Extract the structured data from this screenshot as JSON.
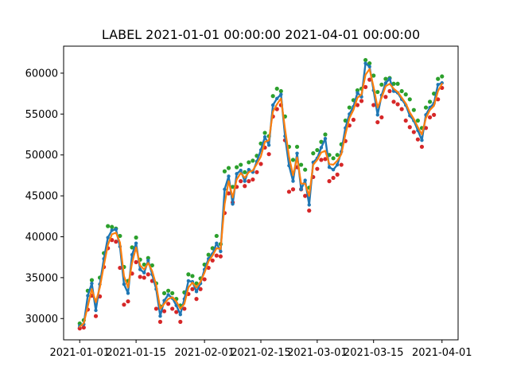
{
  "chart_data": {
    "type": "line",
    "title": "LABEL 2021-01-01 00:00:00 2021-04-01 00:00:00",
    "xlabel": "",
    "ylabel": "",
    "x_range": [
      "2020-12-28",
      "2021-04-05"
    ],
    "ylim": [
      27400,
      63300
    ],
    "x_ticks": [
      "2021-01-01",
      "2021-01-15",
      "2021-02-01",
      "2021-02-15",
      "2021-03-01",
      "2021-03-15",
      "2021-04-01"
    ],
    "x_tick_labels": [
      "2021-01-01",
      "2021-01-15",
      "2021-02-01",
      "2021-02-15",
      "2021-03-01",
      "2021-03-15",
      "2021-04-01"
    ],
    "y_ticks": [
      30000,
      35000,
      40000,
      45000,
      50000,
      55000,
      60000
    ],
    "y_tick_labels": [
      "30000",
      "35000",
      "40000",
      "45000",
      "50000",
      "55000",
      "60000"
    ],
    "grid": false,
    "legend": "none",
    "colors": {
      "close": "#1f77b4",
      "smooth": "#ff7f0e",
      "high": "#2ca02c",
      "low": "#d62728"
    },
    "series": [
      {
        "role": "smoothed",
        "x": [
          "2021-01-01",
          "2021-01-02",
          "2021-01-03",
          "2021-01-04",
          "2021-01-05",
          "2021-01-06",
          "2021-01-07",
          "2021-01-08",
          "2021-01-09",
          "2021-01-10",
          "2021-01-11",
          "2021-01-12",
          "2021-01-13",
          "2021-01-14",
          "2021-01-15",
          "2021-01-16",
          "2021-01-17",
          "2021-01-18",
          "2021-01-19",
          "2021-01-20",
          "2021-01-21",
          "2021-01-22",
          "2021-01-23",
          "2021-01-24",
          "2021-01-25",
          "2021-01-26",
          "2021-01-27",
          "2021-01-28",
          "2021-01-29",
          "2021-01-30",
          "2021-01-31",
          "2021-02-01",
          "2021-02-02",
          "2021-02-03",
          "2021-02-04",
          "2021-02-05",
          "2021-02-06",
          "2021-02-07",
          "2021-02-08",
          "2021-02-09",
          "2021-02-10",
          "2021-02-11",
          "2021-02-12",
          "2021-02-13",
          "2021-02-14",
          "2021-02-15",
          "2021-02-16",
          "2021-02-17",
          "2021-02-18",
          "2021-02-19",
          "2021-02-20",
          "2021-02-21",
          "2021-02-22",
          "2021-02-23",
          "2021-02-24",
          "2021-02-25",
          "2021-02-26",
          "2021-02-27",
          "2021-02-28",
          "2021-03-01",
          "2021-03-02",
          "2021-03-03",
          "2021-03-04",
          "2021-03-05",
          "2021-03-06",
          "2021-03-07",
          "2021-03-08",
          "2021-03-09",
          "2021-03-10",
          "2021-03-11",
          "2021-03-12",
          "2021-03-13",
          "2021-03-14",
          "2021-03-15",
          "2021-03-16",
          "2021-03-17",
          "2021-03-18",
          "2021-03-19",
          "2021-03-20",
          "2021-03-21",
          "2021-03-22",
          "2021-03-23",
          "2021-03-24",
          "2021-03-25",
          "2021-03-26",
          "2021-03-27",
          "2021-03-28",
          "2021-03-29",
          "2021-03-30",
          "2021-03-31",
          "2021-04-01"
        ],
        "values": [
          29000,
          29400,
          31500,
          33600,
          32000,
          33800,
          36500,
          39000,
          40300,
          40500,
          39300,
          35200,
          33800,
          36800,
          38700,
          36500,
          36000,
          36800,
          35800,
          34100,
          31200,
          31800,
          32400,
          32600,
          32100,
          31200,
          31800,
          33800,
          34400,
          33800,
          34500,
          35600,
          37000,
          37700,
          38600,
          38500,
          44000,
          46800,
          44800,
          47000,
          47800,
          47200,
          47900,
          48100,
          48900,
          49800,
          51600,
          51800,
          55300,
          56200,
          56900,
          53200,
          49800,
          47500,
          49700,
          46500,
          46500,
          45000,
          48800,
          49400,
          50300,
          50500,
          48900,
          48800,
          49300,
          50100,
          52500,
          54500,
          55500,
          57000,
          57400,
          59800,
          60500,
          58300,
          55800,
          57000,
          58400,
          58700,
          58100,
          57700,
          57000,
          56300,
          55200,
          54400,
          53400,
          52500,
          54500,
          55500,
          56000,
          57800,
          58700
        ]
      },
      {
        "role": "close",
        "x": [
          "2021-01-01",
          "2021-01-02",
          "2021-01-03",
          "2021-01-04",
          "2021-01-05",
          "2021-01-06",
          "2021-01-07",
          "2021-01-08",
          "2021-01-09",
          "2021-01-10",
          "2021-01-11",
          "2021-01-12",
          "2021-01-13",
          "2021-01-14",
          "2021-01-15",
          "2021-01-16",
          "2021-01-17",
          "2021-01-18",
          "2021-01-19",
          "2021-01-20",
          "2021-01-21",
          "2021-01-22",
          "2021-01-23",
          "2021-01-24",
          "2021-01-25",
          "2021-01-26",
          "2021-01-27",
          "2021-01-28",
          "2021-01-29",
          "2021-01-30",
          "2021-01-31",
          "2021-02-01",
          "2021-02-02",
          "2021-02-03",
          "2021-02-04",
          "2021-02-05",
          "2021-02-06",
          "2021-02-07",
          "2021-02-08",
          "2021-02-09",
          "2021-02-10",
          "2021-02-11",
          "2021-02-12",
          "2021-02-13",
          "2021-02-14",
          "2021-02-15",
          "2021-02-16",
          "2021-02-17",
          "2021-02-18",
          "2021-02-19",
          "2021-02-20",
          "2021-02-21",
          "2021-02-22",
          "2021-02-23",
          "2021-02-24",
          "2021-02-25",
          "2021-02-26",
          "2021-02-27",
          "2021-02-28",
          "2021-03-01",
          "2021-03-02",
          "2021-03-03",
          "2021-03-04",
          "2021-03-05",
          "2021-03-06",
          "2021-03-07",
          "2021-03-08",
          "2021-03-09",
          "2021-03-10",
          "2021-03-11",
          "2021-03-12",
          "2021-03-13",
          "2021-03-14",
          "2021-03-15",
          "2021-03-16",
          "2021-03-17",
          "2021-03-18",
          "2021-03-19",
          "2021-03-20",
          "2021-03-21",
          "2021-03-22",
          "2021-03-23",
          "2021-03-24",
          "2021-03-25",
          "2021-03-26",
          "2021-03-27",
          "2021-03-28",
          "2021-03-29",
          "2021-03-30",
          "2021-03-31",
          "2021-04-01"
        ],
        "values": [
          29100,
          29300,
          32800,
          34300,
          31000,
          34200,
          37300,
          39900,
          40800,
          40900,
          38800,
          34200,
          33100,
          37800,
          39200,
          36000,
          35600,
          37100,
          35400,
          33600,
          30300,
          32200,
          32900,
          32500,
          31600,
          30500,
          32400,
          34600,
          34500,
          33300,
          34300,
          36000,
          37300,
          37900,
          39200,
          38200,
          45800,
          47400,
          44000,
          47700,
          48100,
          46800,
          48200,
          47900,
          49200,
          50600,
          52200,
          51200,
          56100,
          56900,
          57400,
          52300,
          48700,
          46800,
          50200,
          45800,
          46900,
          43900,
          49100,
          49600,
          50900,
          52000,
          48500,
          48200,
          48800,
          50400,
          53300,
          55000,
          55900,
          57600,
          57100,
          61200,
          60800,
          57900,
          54900,
          57300,
          58800,
          59300,
          57800,
          57600,
          56800,
          56100,
          54800,
          54200,
          53000,
          51800,
          54900,
          55800,
          56300,
          58600,
          58800
        ]
      },
      {
        "role": "high",
        "x": [
          "2021-01-01",
          "2021-01-02",
          "2021-01-03",
          "2021-01-04",
          "2021-01-05",
          "2021-01-06",
          "2021-01-07",
          "2021-01-08",
          "2021-01-09",
          "2021-01-10",
          "2021-01-11",
          "2021-01-12",
          "2021-01-13",
          "2021-01-14",
          "2021-01-15",
          "2021-01-16",
          "2021-01-17",
          "2021-01-18",
          "2021-01-19",
          "2021-01-20",
          "2021-01-21",
          "2021-01-22",
          "2021-01-23",
          "2021-01-24",
          "2021-01-25",
          "2021-01-26",
          "2021-01-27",
          "2021-01-28",
          "2021-01-29",
          "2021-01-30",
          "2021-01-31",
          "2021-02-01",
          "2021-02-02",
          "2021-02-03",
          "2021-02-04",
          "2021-02-05",
          "2021-02-06",
          "2021-02-07",
          "2021-02-08",
          "2021-02-09",
          "2021-02-10",
          "2021-02-11",
          "2021-02-12",
          "2021-02-13",
          "2021-02-14",
          "2021-02-15",
          "2021-02-16",
          "2021-02-17",
          "2021-02-18",
          "2021-02-19",
          "2021-02-20",
          "2021-02-21",
          "2021-02-22",
          "2021-02-23",
          "2021-02-24",
          "2021-02-25",
          "2021-02-26",
          "2021-02-27",
          "2021-02-28",
          "2021-03-01",
          "2021-03-02",
          "2021-03-03",
          "2021-03-04",
          "2021-03-05",
          "2021-03-06",
          "2021-03-07",
          "2021-03-08",
          "2021-03-09",
          "2021-03-10",
          "2021-03-11",
          "2021-03-12",
          "2021-03-13",
          "2021-03-14",
          "2021-03-15",
          "2021-03-16",
          "2021-03-17",
          "2021-03-18",
          "2021-03-19",
          "2021-03-20",
          "2021-03-21",
          "2021-03-22",
          "2021-03-23",
          "2021-03-24",
          "2021-03-25",
          "2021-03-26",
          "2021-03-27",
          "2021-03-28",
          "2021-03-29",
          "2021-03-30",
          "2021-03-31",
          "2021-04-01"
        ],
        "values": [
          29400,
          29800,
          33400,
          34700,
          32200,
          35000,
          38000,
          41300,
          41200,
          41000,
          40100,
          36300,
          34600,
          38700,
          39900,
          37200,
          36600,
          37400,
          36500,
          34300,
          31500,
          33100,
          33400,
          33100,
          32400,
          31600,
          33200,
          35400,
          35200,
          34300,
          34900,
          36600,
          37800,
          38600,
          40100,
          39100,
          48000,
          48400,
          46100,
          48500,
          48800,
          47900,
          49100,
          49300,
          49900,
          51400,
          52700,
          52300,
          57200,
          58100,
          57800,
          54700,
          51000,
          49400,
          51000,
          48800,
          48200,
          46000,
          50200,
          50600,
          51600,
          52500,
          50000,
          49600,
          50000,
          51300,
          54200,
          55800,
          56700,
          57900,
          58100,
          61600,
          61200,
          59700,
          57700,
          58600,
          59300,
          59400,
          58700,
          58700,
          57800,
          57400,
          56800,
          55500,
          54200,
          53300,
          55800,
          56500,
          57500,
          59300,
          59600
        ]
      },
      {
        "role": "low",
        "x": [
          "2021-01-01",
          "2021-01-02",
          "2021-01-03",
          "2021-01-04",
          "2021-01-05",
          "2021-01-06",
          "2021-01-07",
          "2021-01-08",
          "2021-01-09",
          "2021-01-10",
          "2021-01-11",
          "2021-01-12",
          "2021-01-13",
          "2021-01-14",
          "2021-01-15",
          "2021-01-16",
          "2021-01-17",
          "2021-01-18",
          "2021-01-19",
          "2021-01-20",
          "2021-01-21",
          "2021-01-22",
          "2021-01-23",
          "2021-01-24",
          "2021-01-25",
          "2021-01-26",
          "2021-01-27",
          "2021-01-28",
          "2021-01-29",
          "2021-01-30",
          "2021-01-31",
          "2021-02-01",
          "2021-02-02",
          "2021-02-03",
          "2021-02-04",
          "2021-02-05",
          "2021-02-06",
          "2021-02-07",
          "2021-02-08",
          "2021-02-09",
          "2021-02-10",
          "2021-02-11",
          "2021-02-12",
          "2021-02-13",
          "2021-02-14",
          "2021-02-15",
          "2021-02-16",
          "2021-02-17",
          "2021-02-18",
          "2021-02-19",
          "2021-02-20",
          "2021-02-21",
          "2021-02-22",
          "2021-02-23",
          "2021-02-24",
          "2021-02-25",
          "2021-02-26",
          "2021-02-27",
          "2021-02-28",
          "2021-03-01",
          "2021-03-02",
          "2021-03-03",
          "2021-03-04",
          "2021-03-05",
          "2021-03-06",
          "2021-03-07",
          "2021-03-08",
          "2021-03-09",
          "2021-03-10",
          "2021-03-11",
          "2021-03-12",
          "2021-03-13",
          "2021-03-14",
          "2021-03-15",
          "2021-03-16",
          "2021-03-17",
          "2021-03-18",
          "2021-03-19",
          "2021-03-20",
          "2021-03-21",
          "2021-03-22",
          "2021-03-23",
          "2021-03-24",
          "2021-03-25",
          "2021-03-26",
          "2021-03-27",
          "2021-03-28",
          "2021-03-29",
          "2021-03-30",
          "2021-03-31",
          "2021-04-01"
        ],
        "values": [
          28800,
          28900,
          31100,
          32800,
          30300,
          32700,
          36300,
          38600,
          39600,
          39400,
          36200,
          31700,
          32100,
          35500,
          36900,
          35100,
          35000,
          35400,
          34600,
          31200,
          29600,
          30900,
          31800,
          31200,
          30800,
          29600,
          31200,
          33000,
          33600,
          32400,
          33600,
          34800,
          36200,
          37100,
          37700,
          37600,
          42900,
          45300,
          44200,
          46100,
          46800,
          46200,
          46800,
          47000,
          47900,
          48900,
          50900,
          50100,
          54700,
          55600,
          56100,
          51800,
          45500,
          45800,
          48500,
          45800,
          45000,
          43200,
          47300,
          48300,
          49400,
          49500,
          46800,
          47200,
          47600,
          48800,
          51700,
          53600,
          54300,
          56100,
          56600,
          58300,
          59200,
          56100,
          54000,
          54600,
          57100,
          57800,
          56500,
          56200,
          55600,
          54200,
          53400,
          52800,
          51900,
          51000,
          53300,
          54600,
          54900,
          56800,
          58200
        ]
      }
    ]
  }
}
